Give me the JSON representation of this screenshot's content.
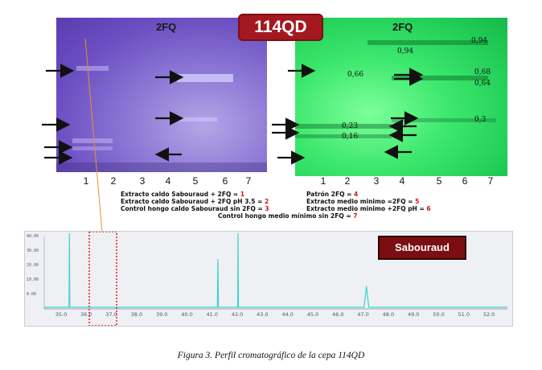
{
  "header": {
    "sample_id": "114QD"
  },
  "plate_left": {
    "label": "2FQ",
    "lanes": [
      "1",
      "2",
      "3",
      "4",
      "5",
      "6",
      "7"
    ]
  },
  "plate_right": {
    "label": "2FQ",
    "lanes": [
      "1",
      "2",
      "3",
      "4",
      "5",
      "6",
      "7"
    ],
    "rf_values": [
      "0,94",
      "0,94",
      "0,66",
      "0,68",
      "0,64",
      "0,3",
      "0,23",
      "0,16"
    ]
  },
  "legend": {
    "left": [
      {
        "text": "Extracto caldo Sabouraud + 2FQ = ",
        "num": "1"
      },
      {
        "text": "Extracto caldo Sabouraud + 2FQ pH 3.5 = ",
        "num": "2"
      },
      {
        "text": "Control hongo caldo Sabouraud  sin 2FQ = ",
        "num": "3"
      }
    ],
    "right": [
      {
        "text": "Patrón 2FQ = ",
        "num": "4"
      },
      {
        "text": "Extracto medio minimo =2FQ = ",
        "num": "5"
      },
      {
        "text": "Extracto medio minimo +2FQ pH = ",
        "num": "6"
      }
    ],
    "bottom": {
      "text": "Control hongo medio mínimo sin 2FQ = ",
      "num": "7"
    }
  },
  "chromatogram": {
    "label": "Sabouraud",
    "x_ticks": [
      "35.0",
      "36.0",
      "37.0",
      "38.0",
      "39.0",
      "40.0",
      "41.0",
      "42.0",
      "43.0",
      "44.0",
      "45.0",
      "46.0",
      "47.0",
      "48.0",
      "49.0",
      "50.0",
      "51.0",
      "52.0"
    ],
    "y_ticks": [
      "40.00",
      "30.00",
      "20.00",
      "10.00",
      "0.00"
    ],
    "peaks_minutes": [
      35.5,
      41.4,
      42.2,
      47.3
    ]
  },
  "caption": "Figura 3. Perfil cromatográfico de la cepa 114QD",
  "colors": {
    "badge": "#a3191f",
    "sabouraud_box": "#7a0e12",
    "trace": "#3fd3cf",
    "highlight": "#e02020",
    "pointer": "#e8902a"
  }
}
